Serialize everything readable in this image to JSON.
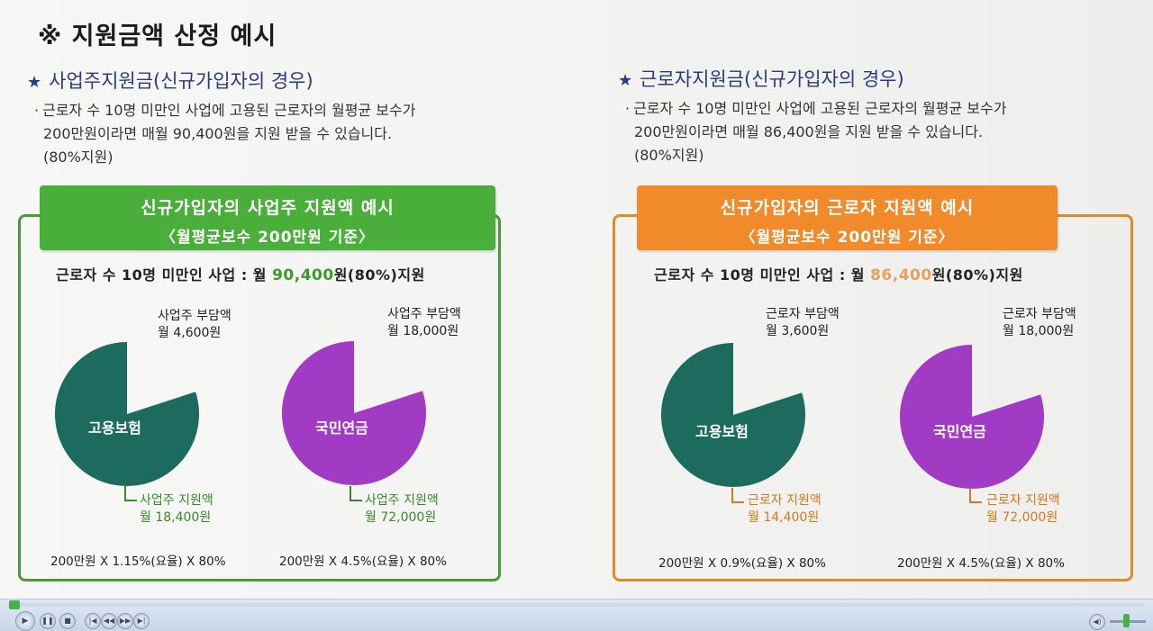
{
  "main_title": "※ 지원금액 산정 예시",
  "left": {
    "title": "사업주지원금(신규가입자의 경우)",
    "desc": [
      "근로자 수 10명 미만인 사업에 고용된 근로자의 월평균 보수가",
      "200만원이라면 매월 90,400원을 지원 받을 수 있습니다.",
      "(80%지원)"
    ],
    "banner_line1": "신규가입자의 사업주 지원액 예시",
    "banner_line2": "〈월평균보수 200만원 기준〉",
    "support_prefix": "근로자 수 10명 미만인 사업 : 월",
    "support_amount": "90,400",
    "support_suffix": "원(80%)지원",
    "pie1": {
      "name": "고용보험",
      "burden_label": "사업주 부담액",
      "burden_amount": "월 4,600원",
      "support_label": "사업주 지원액",
      "support_amount": "월 18,400원",
      "calc": "200만원 X 1.15%(요율) X 80%",
      "share": 0.8
    },
    "pie2": {
      "name": "국민연금",
      "burden_label": "사업주 부담액",
      "burden_amount": "월 18,000원",
      "support_label": "사업주 지원액",
      "support_amount": "월 72,000원",
      "calc": "200만원 X 4.5%(요율) X 80%",
      "share": 0.8
    }
  },
  "right": {
    "title": "근로자지원금(신규가입자의 경우)",
    "desc": [
      "근로자 수 10명 미만인 사업에 고용된 근로자의 월평균 보수가",
      "200만원이라면 매월 86,400원을 지원 받을 수 있습니다.",
      "(80%지원)"
    ],
    "banner_line1": "신규가입자의 근로자 지원액 예시",
    "banner_line2": "〈월평균보수 200만원 기준〉",
    "support_prefix": "근로자 수 10명 미만인 사업 : 월",
    "support_amount": "86,400",
    "support_suffix": "원(80%)지원",
    "pie1": {
      "name": "고용보험",
      "burden_label": "근로자 부담액",
      "burden_amount": "월 3,600원",
      "support_label": "근로자 지원액",
      "support_amount": "월 14,400원",
      "calc": "200만원 X 0.9%(요율) X 80%",
      "share": 0.8
    },
    "pie2": {
      "name": "국민연금",
      "burden_label": "근로자 부담액",
      "burden_amount": "월 18,000원",
      "support_label": "근로자 지원액",
      "support_amount": "월 72,000원",
      "calc": "200만원 X 4.5%(요율) X 80%",
      "share": 0.8
    }
  },
  "colors": {
    "teal": "#1d6b5f",
    "purple": "#a13bc4",
    "green": "#4aae3a",
    "orange": "#f08a2a"
  },
  "player": {
    "play_icon": "play-icon",
    "stop_icon": "stop-icon",
    "volume_icon": "volume-icon"
  }
}
